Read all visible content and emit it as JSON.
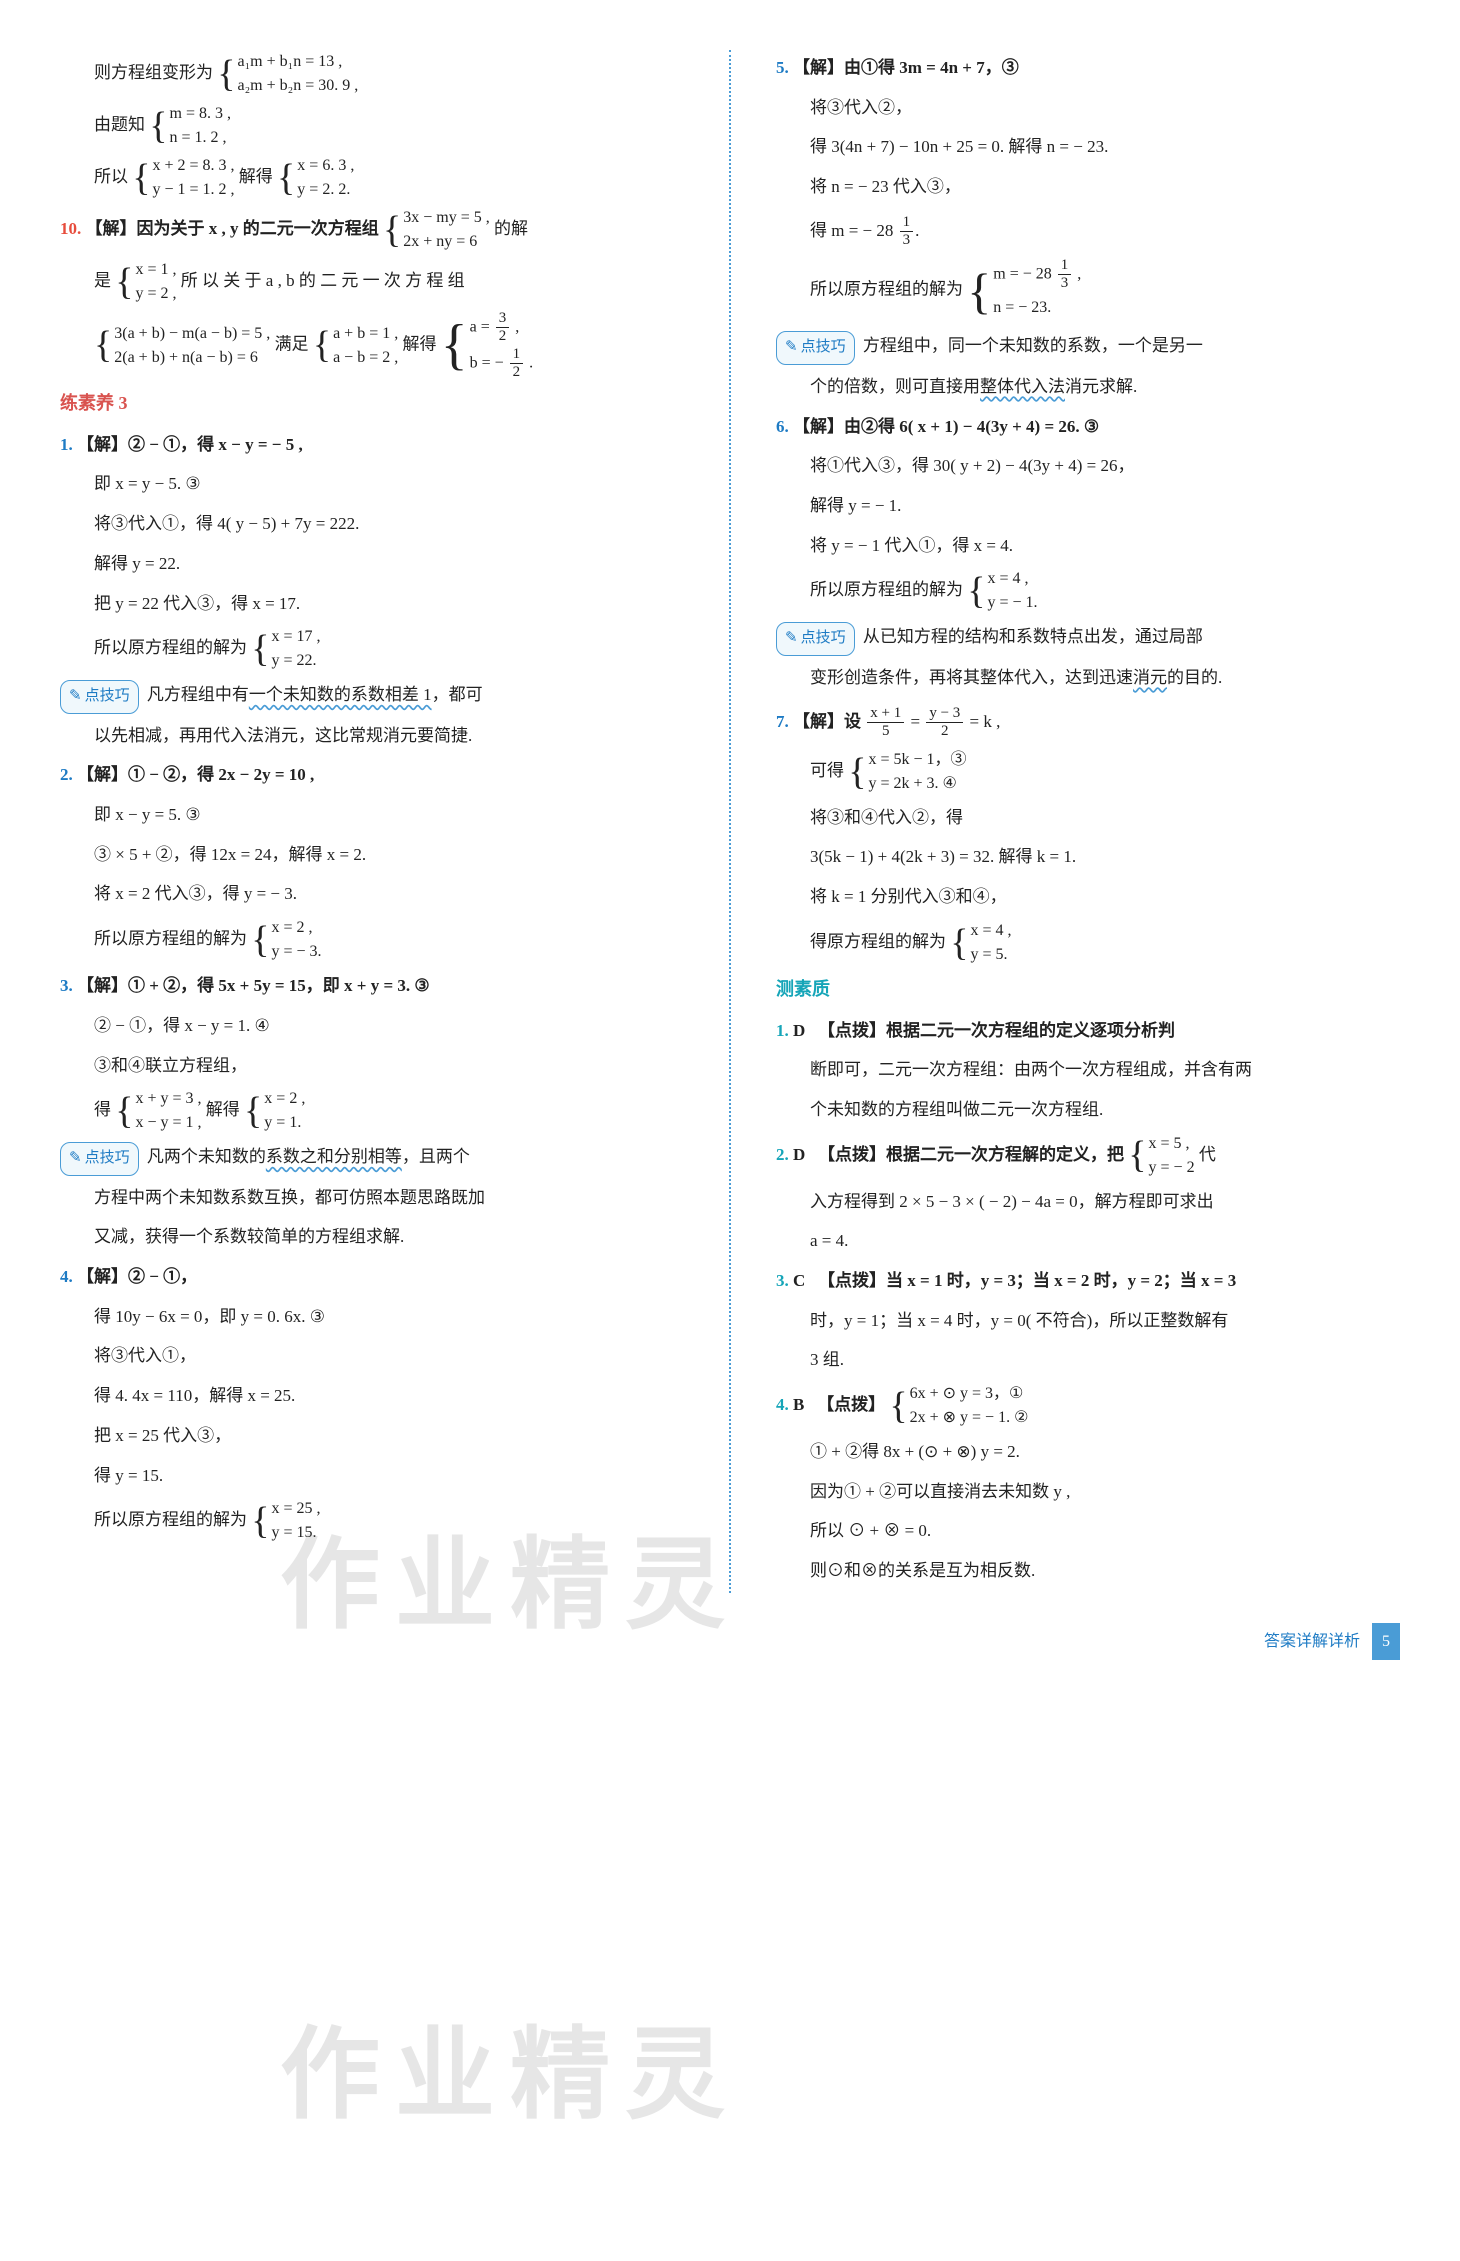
{
  "footer": {
    "label": "答案详解详析",
    "page": "5"
  },
  "watermarks": [
    "作业精灵",
    "作业精灵"
  ],
  "left": {
    "l01a": "则方程组变形为",
    "l01b_top": "a₁m + b₁n = 13 ,",
    "l01b_bot": "a₂m + b₂n = 30. 9 ,",
    "l02a": "由题知",
    "l02b_top": "m = 8. 3 ,",
    "l02b_bot": "n = 1. 2 ,",
    "l03a": "所以",
    "l03b_top": "x + 2 = 8. 3 ,",
    "l03b_bot": "y − 1 = 1. 2 ,",
    "l03c": "解得",
    "l03d_top": "x = 6. 3 ,",
    "l03d_bot": "y = 2. 2.",
    "q10_num": "10.",
    "q10_a": "【解】因为关于 x , y 的二元一次方程组",
    "q10_b_top": "3x − my = 5 ,",
    "q10_b_bot": "2x + ny = 6",
    "q10_c": "的解",
    "q10_d": "是",
    "q10_e_top": "x = 1 ,",
    "q10_e_bot": "y = 2 ,",
    "q10_f": "所 以 关 于 a , b 的 二 元 一 次 方 程 组",
    "q10_g_top": "3(a + b) − m(a − b) = 5 ,",
    "q10_g_bot": "2(a + b) + n(a − b) = 6",
    "q10_h": "满足",
    "q10_i_top": "a + b = 1 ,",
    "q10_i_bot": "a − b = 2 ,",
    "q10_j": "解得",
    "q10_k_top_a": "a =",
    "q10_k_top_n": "3",
    "q10_k_top_d": "2",
    "q10_k_bot_a": "b = −",
    "q10_k_bot_n": "1",
    "q10_k_bot_d": "2",
    "sec3": "练素养 3",
    "s3_q1_num": "1.",
    "s3_q1_a": "【解】② − ①，得 x − y = − 5 ,",
    "s3_q1_b": "即 x = y − 5. ③",
    "s3_q1_c": "将③代入①，得 4( y − 5) + 7y = 222.",
    "s3_q1_d": "解得 y = 22.",
    "s3_q1_e": "把 y = 22 代入③，得 x = 17.",
    "s3_q1_f": "所以原方程组的解为",
    "s3_q1_g_top": "x = 17 ,",
    "s3_q1_g_bot": "y = 22.",
    "tip1_label": "点技巧",
    "tip1_a": "凡方程组中有",
    "tip1_b": "一个未知数的系数相差 1",
    "tip1_c": "，都可",
    "tip1_d": "以先相减，再用代入法消元，这比常规消元要简捷.",
    "s3_q2_num": "2.",
    "s3_q2_a": "【解】① − ②，得 2x − 2y = 10 ,",
    "s3_q2_b": "即 x − y = 5. ③",
    "s3_q2_c": "③ × 5 + ②，得 12x = 24，解得 x = 2.",
    "s3_q2_d": "将 x = 2 代入③，得 y = − 3.",
    "s3_q2_e": "所以原方程组的解为",
    "s3_q2_f_top": "x = 2 ,",
    "s3_q2_f_bot": "y = − 3.",
    "s3_q3_num": "3.",
    "s3_q3_a": "【解】① + ②，得 5x + 5y = 15，即 x + y = 3. ③",
    "s3_q3_b": "② − ①，得 x − y = 1. ④",
    "s3_q3_c": "③和④联立方程组，",
    "s3_q3_d": "得",
    "s3_q3_e_top": "x + y = 3 ,",
    "s3_q3_e_bot": "x − y = 1 ,",
    "s3_q3_f": "解得",
    "s3_q3_g_top": "x = 2 ,",
    "s3_q3_g_bot": "y = 1.",
    "tip2_label": "点技巧",
    "tip2_a": "凡两个未知数的",
    "tip2_b": "系数之和分别相等",
    "tip2_c": "，且两个",
    "tip2_d": "方程中两个未知数系数互换，都可仿照本题思路既加",
    "tip2_e": "又减，获得一个系数较简单的方程组求解.",
    "s3_q4_num": "4.",
    "s3_q4_a": "【解】② − ①，",
    "s3_q4_b": "得 10y − 6x = 0，即 y = 0. 6x. ③",
    "s3_q4_c": "将③代入①，",
    "s3_q4_d": "得 4. 4x = 110，解得 x = 25.",
    "s3_q4_e": "把 x = 25 代入③，",
    "s3_q4_f": "得 y = 15.",
    "s3_q4_g": "所以原方程组的解为",
    "s3_q4_h_top": "x = 25 ,",
    "s3_q4_h_bot": "y = 15."
  },
  "right": {
    "q5_num": "5.",
    "q5_a": "【解】由①得 3m = 4n + 7，③",
    "q5_b": "将③代入②，",
    "q5_c": "得 3(4n + 7) − 10n + 25 = 0. 解得 n = − 23.",
    "q5_d": "将 n = − 23 代入③，",
    "q5_e": "得 m = − 28",
    "q5_e_n": "1",
    "q5_e_d": "3",
    "q5_f": "所以原方程组的解为",
    "q5_g_top_a": "m = − 28",
    "q5_g_top_n": "1",
    "q5_g_top_d": "3",
    "q5_g_bot": "n = − 23.",
    "tip3_label": "点技巧",
    "tip3_a": "方程组中，同一个未知数的系数，一个是另一",
    "tip3_b": "个的倍数，则可直接用",
    "tip3_c": "整体代入法",
    "tip3_d": "消元求解.",
    "q6_num": "6.",
    "q6_a": "【解】由②得 6( x + 1) − 4(3y + 4) = 26. ③",
    "q6_b": "将①代入③，得 30( y + 2) − 4(3y + 4) = 26，",
    "q6_c": "解得 y = − 1.",
    "q6_d": "将 y = − 1 代入①，得 x = 4.",
    "q6_e": "所以原方程组的解为",
    "q6_f_top": "x = 4 ,",
    "q6_f_bot": "y = − 1.",
    "tip4_label": "点技巧",
    "tip4_a": "从已知方程的结构和系数特点出发，通过局部",
    "tip4_b": "变形创造条件，再将其整体代入，达到迅速",
    "tip4_c": "消元",
    "tip4_d": "的目的.",
    "q7_num": "7.",
    "q7_a": "【解】设",
    "q7_a_f1n": "x + 1",
    "q7_a_f1d": "5",
    "q7_a_eq": " = ",
    "q7_a_f2n": "y − 3",
    "q7_a_f2d": "2",
    "q7_a2": " = k ,",
    "q7_b": "可得",
    "q7_c_top": "x = 5k − 1，③",
    "q7_c_bot": "y = 2k + 3. ④",
    "q7_d": "将③和④代入②，得",
    "q7_e": "3(5k − 1) + 4(2k + 3) = 32. 解得 k = 1.",
    "q7_f": "将 k = 1 分别代入③和④，",
    "q7_g": "得原方程组的解为",
    "q7_h_top": "x = 4 ,",
    "q7_h_bot": "y = 5.",
    "sec_test": "测素质",
    "t1_num": "1.",
    "t1_ans": "D",
    "t1_a": "【点拨】根据二元一次方程组的定义逐项分析判",
    "t1_b": "断即可，二元一次方程组：由两个一次方程组成，并含有两",
    "t1_c": "个未知数的方程组叫做二元一次方程组.",
    "t2_num": "2.",
    "t2_ans": "D",
    "t2_a": "【点拨】根据二元一次方程解的定义，把",
    "t2_b_top": "x = 5 ,",
    "t2_b_bot": "y = − 2",
    "t2_c": "代",
    "t2_d": "入方程得到 2 × 5 − 3 × ( − 2) − 4a = 0，解方程即可求出",
    "t2_e": "a = 4.",
    "t3_num": "3.",
    "t3_ans": "C",
    "t3_a": "【点拨】当 x = 1 时，y = 3；当 x = 2 时，y = 2；当 x = 3",
    "t3_b": "时，y = 1；当 x = 4 时，y = 0( 不符合)，所以正整数解有",
    "t3_c": "3 组.",
    "t4_num": "4.",
    "t4_ans": "B",
    "t4_a": "【点拨】",
    "t4_b_top": "6x + ⊙ y = 3，①",
    "t4_b_bot": "2x + ⊗ y = − 1. ②",
    "t4_c": "① + ②得 8x + (⊙ + ⊗) y = 2.",
    "t4_d": "因为① + ②可以直接消去未知数 y ,",
    "t4_e": "所以 ⊙ + ⊗ = 0.",
    "t4_f": "则⊙和⊗的关系是互为相反数."
  }
}
